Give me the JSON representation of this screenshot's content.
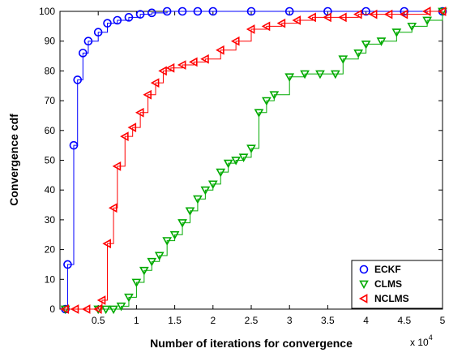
{
  "chart_data": {
    "type": "line",
    "title": "",
    "xlabel": "Number of iterations for convergence",
    "ylabel": "Convergence cdf",
    "x_multiplier_label": "x 10",
    "x_multiplier_exponent": "4",
    "xlim": [
      0,
      5
    ],
    "ylim": [
      0,
      100
    ],
    "x_ticks": [
      "0.5",
      "1",
      "1.5",
      "2",
      "2.5",
      "3",
      "3.5",
      "4",
      "4.5",
      "5"
    ],
    "y_ticks": [
      "0",
      "10",
      "20",
      "30",
      "40",
      "50",
      "60",
      "70",
      "80",
      "90",
      "100"
    ],
    "grid": false,
    "legend_position": "bottom-right",
    "series": [
      {
        "name": "ECKF",
        "color": "#0000ff",
        "marker": "circle",
        "x": [
          0.07,
          0.1,
          0.18,
          0.23,
          0.3,
          0.37,
          0.5,
          0.62,
          0.75,
          0.9,
          1.05,
          1.2,
          1.4,
          1.6,
          1.8,
          2.0,
          2.5,
          3.0,
          3.5,
          4.0,
          4.5,
          5.0
        ],
        "y": [
          0,
          15,
          55,
          77,
          86,
          90,
          93,
          96,
          97,
          98,
          99,
          99.5,
          100,
          100,
          100,
          100,
          100,
          100,
          100,
          100,
          100,
          100
        ]
      },
      {
        "name": "CLMS",
        "color": "#00aa00",
        "marker": "triangle-down",
        "x": [
          0.07,
          0.5,
          0.6,
          0.7,
          0.8,
          0.9,
          1.0,
          1.1,
          1.2,
          1.3,
          1.4,
          1.5,
          1.6,
          1.7,
          1.8,
          1.9,
          2.0,
          2.1,
          2.2,
          2.3,
          2.4,
          2.5,
          2.6,
          2.7,
          2.8,
          3.0,
          3.2,
          3.4,
          3.6,
          3.7,
          3.9,
          4.0,
          4.2,
          4.4,
          4.6,
          4.8,
          5.0
        ],
        "y": [
          0,
          0,
          0,
          0,
          1,
          4,
          9,
          13,
          16,
          18,
          23,
          25,
          29,
          33,
          37,
          40,
          42,
          46,
          49,
          50,
          51,
          54,
          66,
          70,
          72,
          78,
          79,
          79,
          79,
          84,
          86,
          89,
          90,
          93,
          95,
          97,
          100
        ]
      },
      {
        "name": "NCLMS",
        "color": "#ff0000",
        "marker": "triangle-left",
        "x": [
          0.07,
          0.2,
          0.35,
          0.5,
          0.55,
          0.62,
          0.7,
          0.75,
          0.85,
          0.95,
          1.05,
          1.15,
          1.25,
          1.35,
          1.45,
          1.6,
          1.75,
          1.9,
          2.1,
          2.3,
          2.5,
          2.7,
          2.9,
          3.1,
          3.3,
          3.5,
          3.7,
          3.9,
          4.1,
          4.3,
          4.5,
          4.8,
          5.0
        ],
        "y": [
          0,
          0,
          0,
          0,
          3,
          22,
          34,
          48,
          58,
          61,
          66,
          72,
          76,
          80,
          81,
          82,
          83,
          84,
          87,
          90,
          94,
          95,
          96,
          97,
          98,
          98,
          98,
          99,
          99,
          99,
          99,
          100,
          100
        ]
      }
    ]
  },
  "legend": {
    "items": [
      "ECKF",
      "CLMS",
      "NCLMS"
    ]
  }
}
